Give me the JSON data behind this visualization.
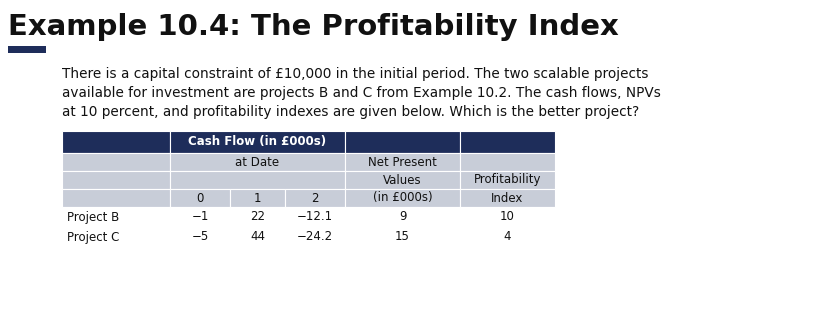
{
  "title": "Example 10.4: The Profitability Index",
  "title_fontsize": 21,
  "title_fontweight": "bold",
  "title_color": "#111111",
  "accent_bar_color": "#1e2d5a",
  "body_text_line1": "There is a capital constraint of £10,000 in the initial period. The two scalable projects",
  "body_text_line2": "available for investment are projects B and C from Example 10.2. The cash flows, NPVs",
  "body_text_line3": "at 10 percent, and profitability indexes are given below. Which is the better project?",
  "body_fontsize": 9.8,
  "body_color": "#111111",
  "table_header_bg": "#1e2d5a",
  "table_header_fg": "#ffffff",
  "table_subheader_bg": "#c8cdd8",
  "table_subheader_fg": "#111111",
  "table_data_bg": "#ffffff",
  "table_data_fg": "#111111",
  "rows": [
    {
      "label": "Project B",
      "values": [
        "−1",
        "22",
        "−12.1",
        "9",
        "10"
      ]
    },
    {
      "label": "Project C",
      "values": [
        "−5",
        "44",
        "−24.2",
        "15",
        "4"
      ]
    }
  ],
  "background_color": "#ffffff"
}
